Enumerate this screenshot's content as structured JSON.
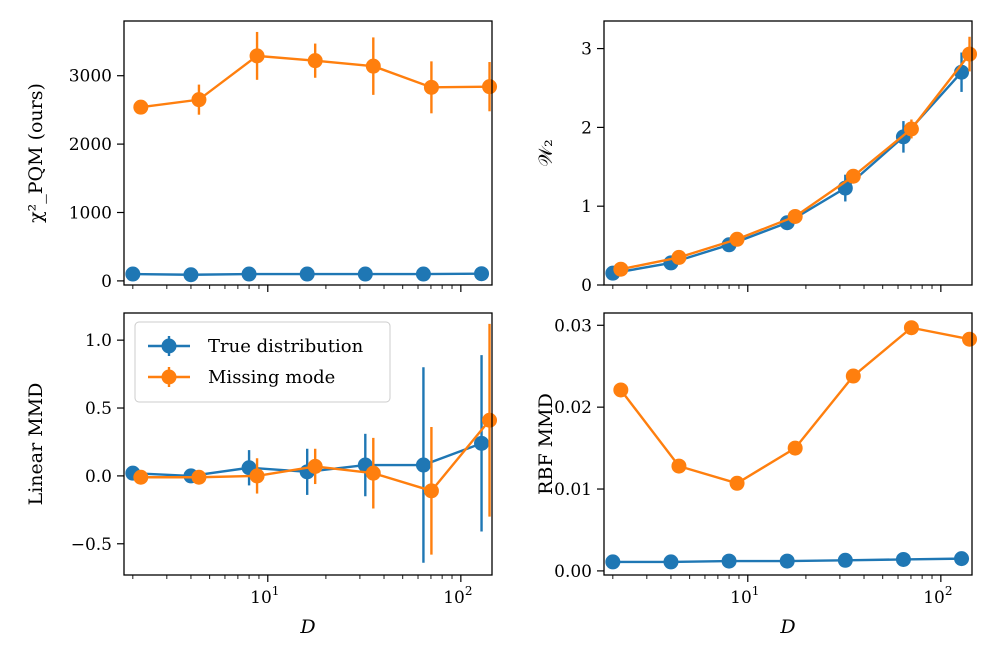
{
  "chart_data": [
    {
      "type": "line",
      "ylabel": "χ²_PQM (ours)",
      "xlabel": "",
      "xscale": "log",
      "xlim": [
        1.8,
        145
      ],
      "ylim": [
        -60,
        3800
      ],
      "x_ticks": [],
      "y_ticks": [
        {
          "value": 0,
          "label": "0"
        },
        {
          "value": 1000,
          "label": "1000"
        },
        {
          "value": 2000,
          "label": "2000"
        },
        {
          "value": 3000,
          "label": "3000"
        }
      ],
      "series": [
        {
          "name": "True distribution",
          "color": "#1f77b4",
          "x": [
            2,
            4,
            8,
            16,
            32,
            64,
            128
          ],
          "y": [
            100,
            90,
            100,
            100,
            100,
            100,
            105
          ],
          "err": [
            0,
            0,
            0,
            0,
            0,
            0,
            0
          ]
        },
        {
          "name": "Missing mode",
          "color": "#ff7f0e",
          "x": [
            2.2,
            4.4,
            8.8,
            17.6,
            35.2,
            70.4,
            140.8
          ],
          "y": [
            2540,
            2650,
            3290,
            3220,
            3140,
            2830,
            2840
          ],
          "err": [
            100,
            220,
            350,
            250,
            420,
            380,
            360
          ]
        }
      ]
    },
    {
      "type": "line",
      "ylabel": "𝒲₂",
      "xlabel": "",
      "xscale": "log",
      "xlim": [
        1.8,
        145
      ],
      "ylim": [
        0,
        3.35
      ],
      "x_ticks": [],
      "y_ticks": [
        {
          "value": 0,
          "label": "0"
        },
        {
          "value": 1,
          "label": "1"
        },
        {
          "value": 2,
          "label": "2"
        },
        {
          "value": 3,
          "label": "3"
        }
      ],
      "series": [
        {
          "name": "True distribution",
          "color": "#1f77b4",
          "x": [
            2,
            4,
            8,
            16,
            32,
            64,
            128
          ],
          "y": [
            0.15,
            0.28,
            0.51,
            0.79,
            1.23,
            1.88,
            2.7
          ],
          "err": [
            0.03,
            0.04,
            0.05,
            0.07,
            0.17,
            0.2,
            0.25
          ]
        },
        {
          "name": "Missing mode",
          "color": "#ff7f0e",
          "x": [
            2.2,
            4.4,
            8.8,
            17.6,
            35.2,
            70.4,
            140.8
          ],
          "y": [
            0.2,
            0.35,
            0.58,
            0.87,
            1.38,
            1.98,
            2.93
          ],
          "err": [
            0.02,
            0.03,
            0.05,
            0.06,
            0.08,
            0.12,
            0.22
          ]
        }
      ]
    },
    {
      "type": "line",
      "ylabel": "Linear MMD",
      "xlabel": "D",
      "xscale": "log",
      "xlim": [
        1.8,
        145
      ],
      "ylim": [
        -0.73,
        1.2
      ],
      "x_ticks": [
        {
          "value": 10,
          "label": "10",
          "exp": "1"
        },
        {
          "value": 100,
          "label": "10",
          "exp": "2"
        }
      ],
      "y_ticks": [
        {
          "value": -0.5,
          "label": "−0.5"
        },
        {
          "value": 0,
          "label": "0.0"
        },
        {
          "value": 0.5,
          "label": "0.5"
        },
        {
          "value": 1,
          "label": "1.0"
        }
      ],
      "legend": {
        "placement": "top-left",
        "entries": [
          "True distribution",
          "Missing mode"
        ]
      },
      "series": [
        {
          "name": "True distribution",
          "color": "#1f77b4",
          "x": [
            2,
            4,
            8,
            16,
            32,
            64,
            128
          ],
          "y": [
            0.02,
            0.0,
            0.06,
            0.03,
            0.08,
            0.08,
            0.24
          ],
          "err": [
            0.05,
            0.03,
            0.13,
            0.17,
            0.23,
            0.72,
            0.65
          ]
        },
        {
          "name": "Missing mode",
          "color": "#ff7f0e",
          "x": [
            2.2,
            4.4,
            8.8,
            17.6,
            35.2,
            70.4,
            140.8
          ],
          "y": [
            -0.01,
            -0.01,
            0.0,
            0.07,
            0.02,
            -0.11,
            0.41
          ],
          "err": [
            0.04,
            0.03,
            0.13,
            0.13,
            0.26,
            0.47,
            0.71
          ]
        }
      ]
    },
    {
      "type": "line",
      "ylabel": "RBF MMD",
      "xlabel": "D",
      "xscale": "log",
      "xlim": [
        1.8,
        145
      ],
      "ylim": [
        -0.0005,
        0.0315
      ],
      "x_ticks": [
        {
          "value": 10,
          "label": "10",
          "exp": "1"
        },
        {
          "value": 100,
          "label": "10",
          "exp": "2"
        }
      ],
      "y_ticks": [
        {
          "value": 0,
          "label": "0.00"
        },
        {
          "value": 0.01,
          "label": "0.01"
        },
        {
          "value": 0.02,
          "label": "0.02"
        },
        {
          "value": 0.03,
          "label": "0.03"
        }
      ],
      "series": [
        {
          "name": "True distribution",
          "color": "#1f77b4",
          "x": [
            2,
            4,
            8,
            16,
            32,
            64,
            128
          ],
          "y": [
            0.0011,
            0.0011,
            0.0012,
            0.0012,
            0.0013,
            0.0014,
            0.0015
          ],
          "err": [
            0,
            0,
            0,
            0,
            0,
            0,
            0
          ]
        },
        {
          "name": "Missing mode",
          "color": "#ff7f0e",
          "x": [
            2.2,
            4.4,
            8.8,
            17.6,
            35.2,
            70.4,
            140.8
          ],
          "y": [
            0.0221,
            0.0128,
            0.0107,
            0.015,
            0.0238,
            0.0297,
            0.0283
          ],
          "err": [
            0,
            0,
            0,
            0,
            0,
            0,
            0
          ]
        }
      ]
    }
  ]
}
